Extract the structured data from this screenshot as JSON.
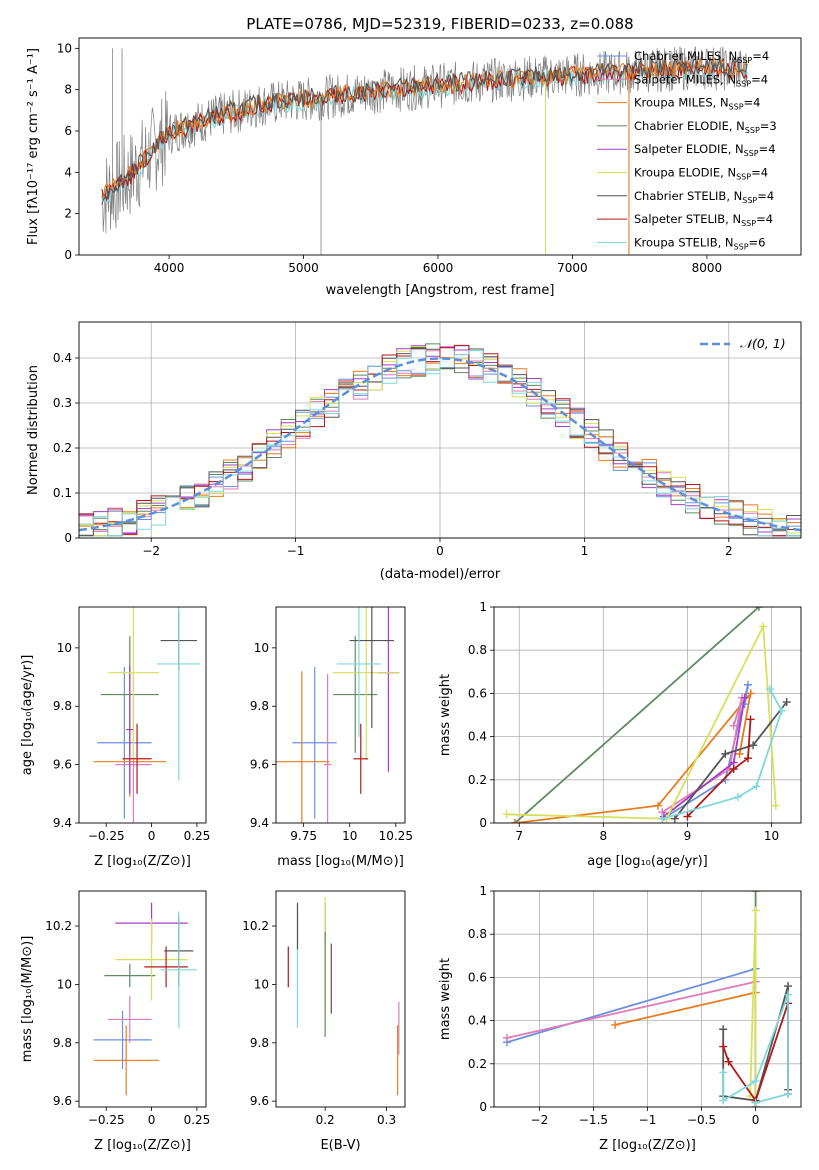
{
  "title": "PLATE=0786, MJD=52319, FIBERID=0233, z=0.088",
  "colors": {
    "chabrier_miles": "#6b8fe0",
    "salpeter_miles": "#e07ab8",
    "kroupa_miles": "#e87c1e",
    "chabrier_elodie": "#5f8a5f",
    "salpeter_elodie": "#a63ec8",
    "kroupa_elodie": "#d6e05a",
    "chabrier_stelib": "#555555",
    "salpeter_stelib": "#b01818",
    "kroupa_stelib": "#7fd7dc",
    "data": "#808080",
    "normal": "#5b8fdc",
    "grid": "#b0b0b0"
  },
  "chart_data": [
    {
      "id": "spectrum",
      "type": "line",
      "xlabel": "wavelength [Angstrom, rest frame]",
      "ylabel": "Flux [fλ10⁻¹⁷ erg cm⁻² s⁻¹ A⁻¹]",
      "xlim": [
        3330,
        8700
      ],
      "ylim": [
        0,
        10.5
      ],
      "xticks": [
        4000,
        5000,
        6000,
        7000,
        8000
      ],
      "yticks": [
        0,
        2,
        4,
        6,
        8,
        10
      ],
      "grid": false,
      "legend_position": "right",
      "legend": [
        {
          "text": "Chabrier MILES, N",
          "sub": "SSP",
          "suffix": "=4",
          "key": "chabrier_miles"
        },
        {
          "text": "Salpeter MILES, N",
          "sub": "SSP",
          "suffix": "=4",
          "key": "salpeter_miles"
        },
        {
          "text": "Kroupa MILES, N",
          "sub": "SSP",
          "suffix": "=4",
          "key": "kroupa_miles"
        },
        {
          "text": "Chabrier ELODIE, N",
          "sub": "SSP",
          "suffix": "=3",
          "key": "chabrier_elodie"
        },
        {
          "text": "Salpeter ELODIE, N",
          "sub": "SSP",
          "suffix": "=4",
          "key": "salpeter_elodie"
        },
        {
          "text": "Kroupa ELODIE, N",
          "sub": "SSP",
          "suffix": "=4",
          "key": "kroupa_elodie"
        },
        {
          "text": "Chabrier STELIB, N",
          "sub": "SSP",
          "suffix": "=4",
          "key": "chabrier_stelib"
        },
        {
          "text": "Salpeter STELIB, N",
          "sub": "SSP",
          "suffix": "=4",
          "key": "salpeter_stelib"
        },
        {
          "text": "Kroupa STELIB, N",
          "sub": "SSP",
          "suffix": "=6",
          "key": "kroupa_stelib"
        }
      ],
      "continuum": [
        [
          3500,
          2.8
        ],
        [
          3700,
          3.8
        ],
        [
          3900,
          5.2
        ],
        [
          4000,
          5.9
        ],
        [
          4300,
          6.6
        ],
        [
          4700,
          7.3
        ],
        [
          5000,
          7.5
        ],
        [
          5500,
          7.9
        ],
        [
          6000,
          8.2
        ],
        [
          6500,
          8.5
        ],
        [
          7000,
          8.7
        ],
        [
          7500,
          8.9
        ],
        [
          8000,
          9.1
        ],
        [
          8300,
          8.9
        ]
      ],
      "spikes": [
        [
          5130,
          0.0
        ],
        [
          6800,
          0.0
        ],
        [
          7420,
          0.0
        ],
        [
          3580,
          10.0
        ],
        [
          3650,
          10.0
        ]
      ]
    },
    {
      "id": "residuals",
      "type": "histogram",
      "xlabel": "(data-model)/error",
      "ylabel": "Normed distribution",
      "xlim": [
        -2.5,
        2.5
      ],
      "ylim": [
        0,
        0.48
      ],
      "xticks": [
        -2,
        -1,
        0,
        1,
        2
      ],
      "yticks": [
        0.0,
        0.1,
        0.2,
        0.3,
        0.4
      ],
      "grid": true,
      "legend_label": "𝒩(0, 1)",
      "legend_position": "top-right",
      "bin_width": 0.1,
      "bin_start": -2.5
    },
    {
      "id": "age_vs_Z",
      "type": "errorbar",
      "xlabel": "Z [log₁₀(Z/Z⊙)]",
      "ylabel": "age  [log₁₀(age/yr)]",
      "xlim": [
        -0.4,
        0.3
      ],
      "ylim": [
        9.4,
        10.14
      ],
      "xticks": [
        -0.25,
        0.0,
        0.25
      ],
      "yticks": [
        9.4,
        9.6,
        9.8,
        10.0
      ],
      "points": [
        {
          "key": "chabrier_miles",
          "x": -0.15,
          "xerr": 0.15,
          "y": 9.675,
          "yerr": 0.26
        },
        {
          "key": "salpeter_miles",
          "x": -0.1,
          "xerr": 0.1,
          "y": 9.6,
          "yerr": 0.31
        },
        {
          "key": "kroupa_miles",
          "x": -0.12,
          "xerr": 0.2,
          "y": 9.61,
          "yerr": 0.12
        },
        {
          "key": "chabrier_elodie",
          "x": -0.12,
          "xerr": 0.16,
          "y": 9.84,
          "yerr": 0.2
        },
        {
          "key": "salpeter_elodie",
          "x": -0.12,
          "xerr": 0.02,
          "y": 9.72,
          "yerr": 0.22
        },
        {
          "key": "kroupa_elodie",
          "x": -0.1,
          "xerr": 0.14,
          "y": 9.915,
          "yerr": 0.3
        },
        {
          "key": "chabrier_stelib",
          "x": 0.15,
          "xerr": 0.1,
          "y": 10.025,
          "yerr": 0.1
        },
        {
          "key": "salpeter_stelib",
          "x": -0.08,
          "xerr": 0.08,
          "y": 9.62,
          "yerr": 0.12
        },
        {
          "key": "kroupa_stelib",
          "x": 0.15,
          "xerr": 0.12,
          "y": 9.945,
          "yerr": 0.4
        }
      ]
    },
    {
      "id": "age_vs_mass",
      "type": "errorbar",
      "xlabel": "mass [log₁₀(M/M⊙)]",
      "ylabel": "",
      "xlim": [
        9.6,
        10.3
      ],
      "ylim": [
        9.4,
        10.14
      ],
      "xticks": [
        9.75,
        10.0,
        10.25
      ],
      "yticks": [
        9.4,
        9.6,
        9.8,
        10.0
      ],
      "points": [
        {
          "key": "chabrier_miles",
          "x": 9.81,
          "xerr": 0.12,
          "y": 9.675,
          "yerr": 0.26
        },
        {
          "key": "salpeter_miles",
          "x": 9.88,
          "xerr": 0.02,
          "y": 9.6,
          "yerr": 0.31
        },
        {
          "key": "kroupa_miles",
          "x": 9.74,
          "xerr": 0.15,
          "y": 9.61,
          "yerr": 0.31
        },
        {
          "key": "chabrier_elodie",
          "x": 10.03,
          "xerr": 0.12,
          "y": 9.84,
          "yerr": 0.2
        },
        {
          "key": "salpeter_elodie",
          "x": 10.21,
          "xerr": 0.06,
          "y": 9.915,
          "yerr": 0.34
        },
        {
          "key": "kroupa_elodie",
          "x": 10.09,
          "xerr": 0.18,
          "y": 9.915,
          "yerr": 0.3
        },
        {
          "key": "chabrier_stelib",
          "x": 10.12,
          "xerr": 0.12,
          "y": 10.025,
          "yerr": 0.3
        },
        {
          "key": "salpeter_stelib",
          "x": 10.06,
          "xerr": 0.04,
          "y": 9.62,
          "yerr": 0.12
        },
        {
          "key": "kroupa_stelib",
          "x": 10.05,
          "xerr": 0.12,
          "y": 9.945,
          "yerr": 0.25
        }
      ]
    },
    {
      "id": "weight_vs_age",
      "type": "line",
      "xlabel": "age  [log₁₀(age/yr)]",
      "ylabel": "mass weight",
      "xlim": [
        6.7,
        10.35
      ],
      "ylim": [
        0,
        1.0
      ],
      "xticks": [
        7,
        8,
        9,
        10
      ],
      "yticks": [
        0.0,
        0.2,
        0.4,
        0.6,
        0.8,
        1.0
      ],
      "grid": true,
      "series": [
        {
          "key": "chabrier_elodie",
          "x": [
            6.95,
            9.85
          ],
          "y": [
            0.0,
            1.0
          ]
        },
        {
          "key": "kroupa_miles",
          "x": [
            6.95,
            8.65,
            9.75,
            9.62
          ],
          "y": [
            0.0,
            0.08,
            0.6,
            0.32
          ]
        },
        {
          "key": "chabrier_miles",
          "x": [
            8.75,
            9.45,
            9.72,
            9.68
          ],
          "y": [
            0.03,
            0.2,
            0.64,
            0.55
          ]
        },
        {
          "key": "salpeter_miles",
          "x": [
            8.7,
            9.5,
            9.65,
            9.55
          ],
          "y": [
            0.05,
            0.25,
            0.58,
            0.45
          ]
        },
        {
          "key": "salpeter_elodie",
          "x": [
            8.72,
            9.55,
            9.68
          ],
          "y": [
            0.03,
            0.28,
            0.58
          ]
        },
        {
          "key": "kroupa_elodie",
          "x": [
            6.85,
            8.75,
            9.9,
            10.05
          ],
          "y": [
            0.04,
            0.02,
            0.91,
            0.08
          ]
        },
        {
          "key": "chabrier_stelib",
          "x": [
            8.85,
            9.45,
            9.78,
            10.18
          ],
          "y": [
            0.02,
            0.32,
            0.36,
            0.56
          ]
        },
        {
          "key": "salpeter_stelib",
          "x": [
            9.0,
            9.55,
            9.72,
            9.75
          ],
          "y": [
            0.03,
            0.25,
            0.3,
            0.48
          ]
        },
        {
          "key": "kroupa_stelib",
          "x": [
            8.7,
            9.6,
            9.82,
            10.12,
            9.98
          ],
          "y": [
            0.02,
            0.12,
            0.17,
            0.52,
            0.62
          ]
        }
      ]
    },
    {
      "id": "mass_vs_Z",
      "type": "errorbar",
      "xlabel": "Z [log₁₀(Z/Z⊙)]",
      "ylabel": "mass [log₁₀(M/M⊙)]",
      "xlim": [
        -0.4,
        0.3
      ],
      "ylim": [
        9.58,
        10.32
      ],
      "xticks": [
        -0.25,
        0.0,
        0.25
      ],
      "yticks": [
        9.6,
        9.8,
        10.0,
        10.2
      ],
      "points": [
        {
          "key": "chabrier_miles",
          "x": -0.16,
          "xerr": 0.16,
          "y": 9.81,
          "yerr": 0.1
        },
        {
          "key": "salpeter_miles",
          "x": -0.12,
          "xerr": 0.12,
          "y": 9.88,
          "yerr": 0.08
        },
        {
          "key": "kroupa_miles",
          "x": -0.14,
          "xerr": 0.18,
          "y": 9.74,
          "yerr": 0.12
        },
        {
          "key": "chabrier_elodie",
          "x": -0.12,
          "xerr": 0.14,
          "y": 10.03,
          "yerr": 0.04
        },
        {
          "key": "salpeter_elodie",
          "x": 0.0,
          "xerr": 0.2,
          "y": 10.21,
          "yerr": 0.07
        },
        {
          "key": "kroupa_elodie",
          "x": 0.0,
          "xerr": 0.2,
          "y": 10.085,
          "yerr": 0.14
        },
        {
          "key": "chabrier_stelib",
          "x": 0.15,
          "xerr": 0.08,
          "y": 10.115,
          "yerr": 0.12
        },
        {
          "key": "salpeter_stelib",
          "x": 0.08,
          "xerr": 0.12,
          "y": 10.06,
          "yerr": 0.07
        },
        {
          "key": "kroupa_stelib",
          "x": 0.15,
          "xerr": 0.1,
          "y": 10.05,
          "yerr": 0.2
        }
      ]
    },
    {
      "id": "mass_vs_ebv",
      "type": "errorbar",
      "xlabel": "E(B-V)",
      "ylabel": "",
      "xlim": [
        0.12,
        0.33
      ],
      "ylim": [
        9.58,
        10.32
      ],
      "xticks": [
        0.2,
        0.3
      ],
      "yticks": [
        9.6,
        9.8,
        10.0,
        10.2
      ],
      "points": [
        {
          "key": "salpeter_stelib",
          "x": 0.14,
          "xerr": 0,
          "y": 10.06,
          "yerr": 0.07
        },
        {
          "key": "kroupa_stelib",
          "x": 0.155,
          "xerr": 0,
          "y": 10.05,
          "yerr": 0.2
        },
        {
          "key": "chabrier_stelib",
          "x": 0.155,
          "xerr": 0,
          "y": 10.2,
          "yerr": 0.08
        },
        {
          "key": "salpeter_elodie",
          "x": 0.2,
          "xerr": 0,
          "y": 10.21,
          "yerr": 0.07
        },
        {
          "key": "kroupa_elodie",
          "x": 0.2,
          "xerr": 0,
          "y": 10.1,
          "yerr": 0.2
        },
        {
          "key": "chabrier_elodie",
          "x": 0.2,
          "xerr": 0,
          "y": 10.0,
          "yerr": 0.18
        },
        {
          "key": "chabrier_stelib",
          "x": 0.21,
          "xerr": 0,
          "y": 10.02,
          "yerr": 0.12
        },
        {
          "key": "kroupa_miles",
          "x": 0.318,
          "xerr": 0,
          "y": 9.74,
          "yerr": 0.12
        },
        {
          "key": "salpeter_miles",
          "x": 0.32,
          "xerr": 0,
          "y": 9.85,
          "yerr": 0.09
        }
      ]
    },
    {
      "id": "weight_vs_Z",
      "type": "line",
      "xlabel": "Z [log₁₀(Z/Z⊙)]",
      "ylabel": "mass weight",
      "xlim": [
        -2.42,
        0.42
      ],
      "ylim": [
        0,
        1.0
      ],
      "xticks": [
        -2.0,
        -1.5,
        -1.0,
        -0.5,
        0.0
      ],
      "yticks": [
        0.0,
        0.2,
        0.4,
        0.6,
        0.8,
        1.0
      ],
      "grid": true,
      "series": [
        {
          "key": "chabrier_miles",
          "x": [
            -2.3,
            0.0,
            0.0
          ],
          "y": [
            0.3,
            0.64,
            0.02
          ]
        },
        {
          "key": "salpeter_miles",
          "x": [
            -2.3,
            0.0,
            0.0
          ],
          "y": [
            0.32,
            0.58,
            0.02
          ]
        },
        {
          "key": "kroupa_miles",
          "x": [
            -1.3,
            0.0,
            0.0
          ],
          "y": [
            0.38,
            0.53,
            0.02
          ]
        },
        {
          "key": "chabrier_elodie",
          "x": [
            0.0,
            0.0
          ],
          "y": [
            0.0,
            1.0
          ]
        },
        {
          "key": "kroupa_elodie",
          "x": [
            0.0,
            0.0,
            -0.05
          ],
          "y": [
            0.02,
            0.91,
            0.05
          ]
        },
        {
          "key": "chabrier_stelib",
          "x": [
            -0.3,
            -0.3,
            0.0,
            0.3,
            0.3
          ],
          "y": [
            0.36,
            0.05,
            0.03,
            0.56,
            0.08
          ]
        },
        {
          "key": "salpeter_stelib",
          "x": [
            -0.3,
            -0.25,
            0.0,
            0.3,
            0.3
          ],
          "y": [
            0.28,
            0.21,
            0.03,
            0.48,
            0.06
          ]
        },
        {
          "key": "kroupa_stelib",
          "x": [
            -0.3,
            -0.3,
            0.0,
            0.3,
            0.3,
            0.0
          ],
          "y": [
            0.16,
            0.03,
            0.12,
            0.52,
            0.06,
            0.02
          ]
        }
      ]
    }
  ]
}
